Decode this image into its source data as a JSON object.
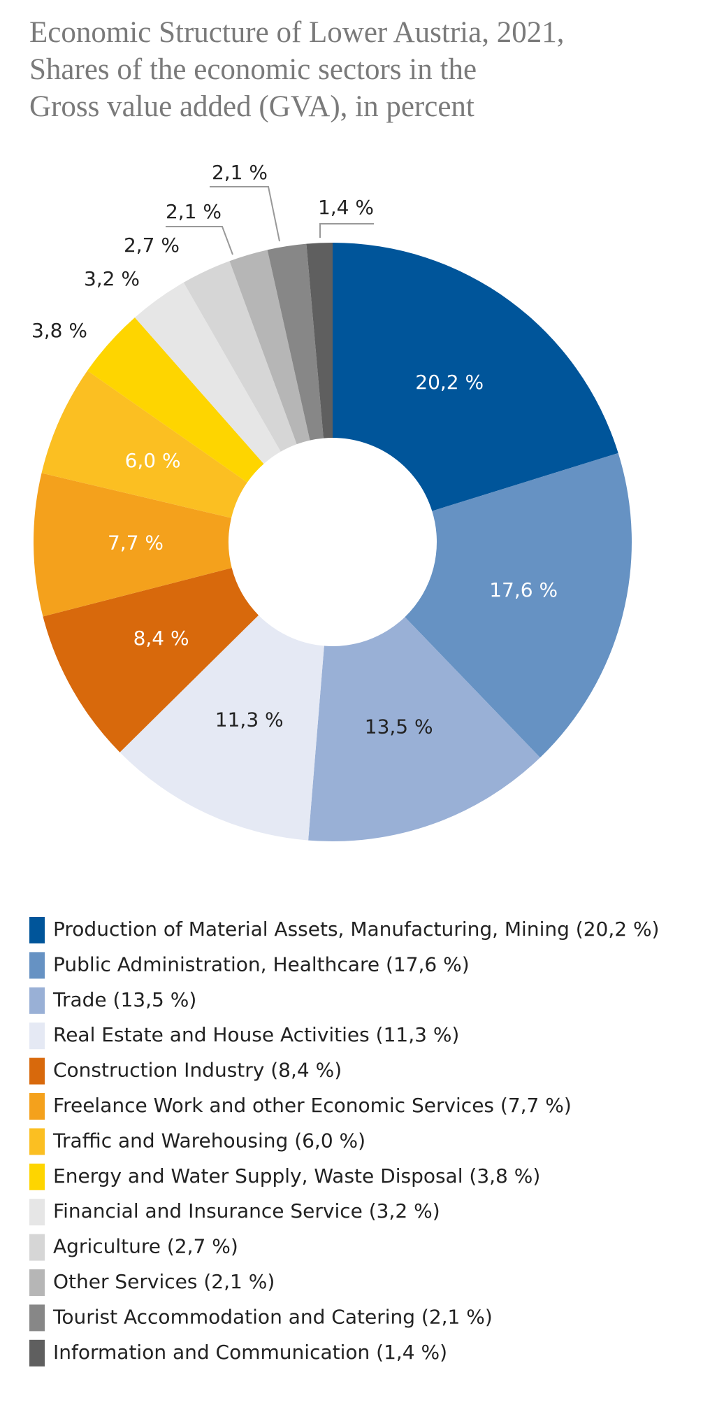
{
  "chart_data": {
    "type": "pie",
    "title": [
      "Economic Structure of Lower Austria, 2021,",
      "Shares of the economic sectors in the",
      "Gross value added (GVA), in percent"
    ],
    "categories": [
      "Production of Material Assets, Manufacturing, Mining (20,2 %)",
      "Public Administration, Healthcare (17,6 %)",
      "Trade (13,5 %)",
      "Real Estate and House Activities (11,3 %)",
      "Construction Industry (8,4 %)",
      "Freelance Work and other Economic Services (7,7 %)",
      "Traffic and Warehousing (6,0 %)",
      "Energy and Water Supply, Waste Disposal (3,8 %)",
      "Financial and Insurance Service (3,2 %)",
      "Agriculture (2,7 %)",
      "Other Services (2,1 %)",
      "Tourist Accommodation and Catering (2,1 %)",
      "Information and Communication (1,4 %)"
    ],
    "values": [
      20.2,
      17.6,
      13.5,
      11.3,
      8.4,
      7.7,
      6.0,
      3.8,
      3.2,
      2.7,
      2.1,
      2.1,
      1.4
    ],
    "value_labels": [
      "20,2 %",
      "17,6 %",
      "13,5 %",
      "11,3 %",
      "8,4 %",
      "7,7 %",
      "6,0 %",
      "3,8 %",
      "3,2 %",
      "2,7 %",
      "2,1 %",
      "2,1 %",
      "1,4 %"
    ],
    "colors": [
      "#00559a",
      "#6692c3",
      "#99b0d6",
      "#e5e9f4",
      "#d8690c",
      "#f4a11c",
      "#fbbf22",
      "#fed500",
      "#e6e6e6",
      "#d6d6d6",
      "#b6b6b6",
      "#878787",
      "#5f5f5f"
    ]
  }
}
